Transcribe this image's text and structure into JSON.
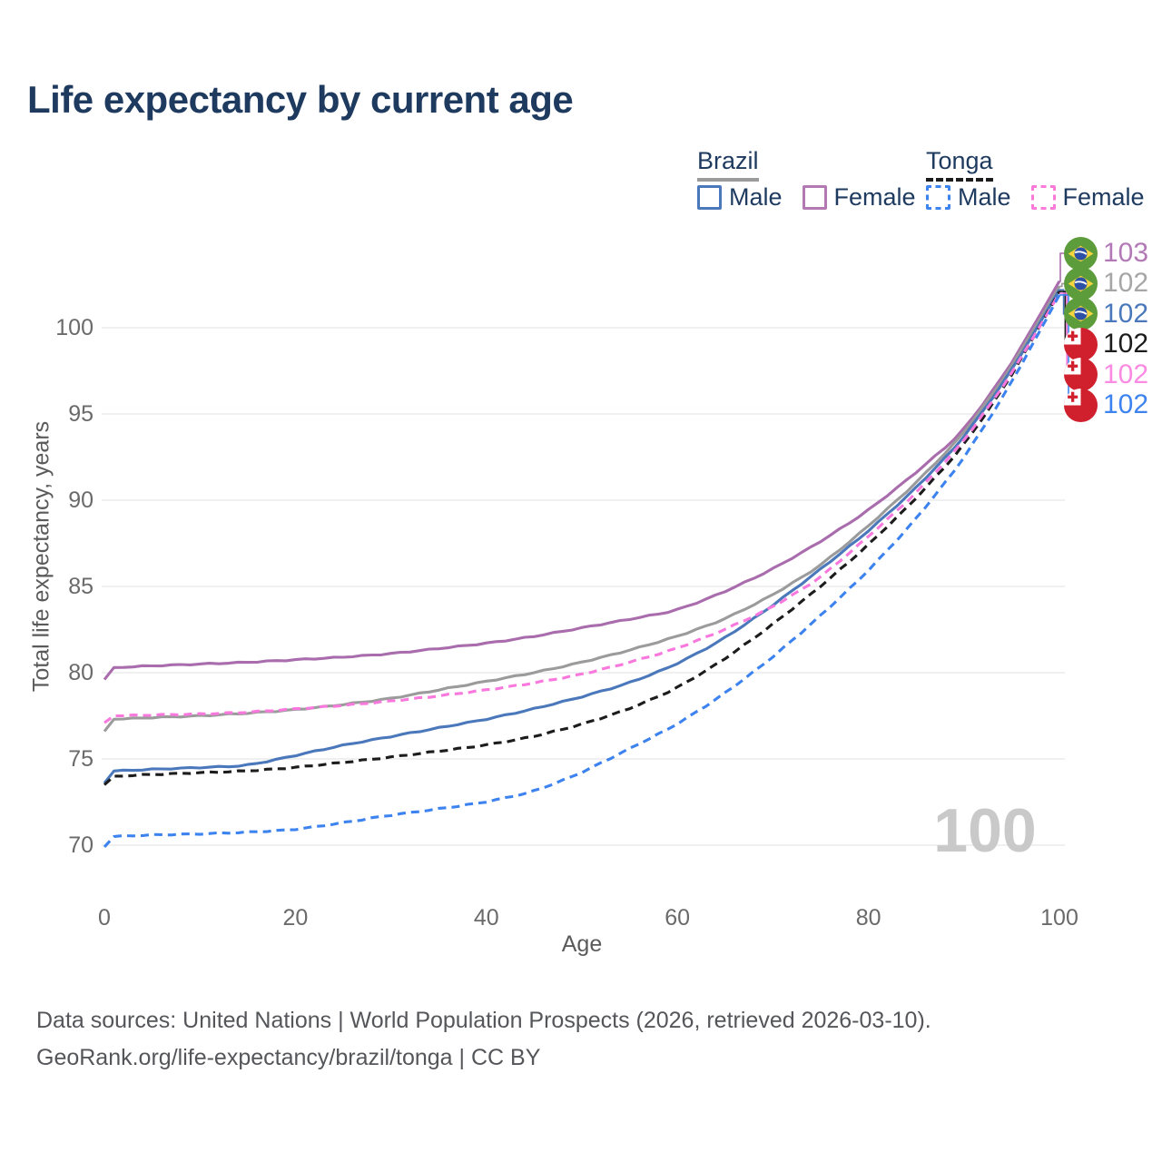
{
  "title": "Life expectancy by current age",
  "legend": {
    "groups": [
      {
        "country": "Brazil",
        "underline_style": "solid",
        "underline_color": "#9b9b9b",
        "items": [
          {
            "label": "Male",
            "color": "#4a78bb",
            "dash": false
          },
          {
            "label": "Female",
            "color": "#b279b2",
            "dash": false
          }
        ]
      },
      {
        "country": "Tonga",
        "underline_style": "dashed",
        "underline_color": "#1c1c1c",
        "items": [
          {
            "label": "Male",
            "color": "#3d83ef",
            "dash": true
          },
          {
            "label": "Female",
            "color": "#fb7ad9",
            "dash": true
          }
        ]
      }
    ]
  },
  "chart_data": {
    "type": "line",
    "xlabel": "Age",
    "ylabel": "Total life expectancy, years",
    "x_ticks": [
      0,
      20,
      40,
      60,
      80,
      100
    ],
    "y_ticks": [
      70,
      75,
      80,
      85,
      90,
      95,
      100
    ],
    "xlim": [
      0,
      100
    ],
    "ylim": [
      68.5,
      104
    ],
    "grid": true,
    "watermark": "100",
    "x": [
      0,
      1,
      5,
      10,
      15,
      20,
      25,
      30,
      35,
      40,
      45,
      50,
      55,
      60,
      65,
      70,
      75,
      80,
      85,
      90,
      95,
      100
    ],
    "series": [
      {
        "name": "Brazil Female",
        "country": "Brazil",
        "sex": "Female",
        "color": "#a96cac",
        "dash": false,
        "end_label": "103",
        "label_color": "#b279b6",
        "flag": "brazil",
        "values": [
          79.6,
          80.3,
          80.4,
          80.5,
          80.6,
          80.75,
          80.9,
          81.1,
          81.4,
          81.7,
          82.1,
          82.6,
          83.1,
          83.6,
          84.7,
          86.0,
          87.6,
          89.4,
          91.6,
          94.0,
          97.9,
          102.7
        ]
      },
      {
        "name": "Brazil Both sexes",
        "country": "Brazil",
        "sex": "Both",
        "color": "#9b9b9b",
        "dash": false,
        "end_label": "102",
        "label_color": "#a6a6a6",
        "flag": "brazil",
        "values": [
          76.6,
          77.3,
          77.4,
          77.5,
          77.65,
          77.85,
          78.15,
          78.5,
          79.0,
          79.5,
          80.0,
          80.6,
          81.3,
          82.1,
          83.1,
          84.5,
          86.2,
          88.5,
          91.0,
          93.85,
          97.7,
          102.4
        ]
      },
      {
        "name": "Brazil Male",
        "country": "Brazil",
        "sex": "Male",
        "color": "#4a78bb",
        "dash": false,
        "end_label": "102",
        "label_color": "#4a78bb",
        "flag": "brazil",
        "values": [
          73.6,
          74.3,
          74.4,
          74.5,
          74.6,
          75.2,
          75.8,
          76.3,
          76.8,
          77.3,
          77.9,
          78.6,
          79.4,
          80.5,
          82.0,
          83.9,
          86.0,
          88.2,
          90.7,
          93.6,
          97.5,
          102.2
        ]
      },
      {
        "name": "Tonga Both sexes",
        "country": "Tonga",
        "sex": "Both",
        "color": "#1c1c1c",
        "dash": true,
        "end_label": "102",
        "label_color": "#1c1c1c",
        "flag": "tonga",
        "values": [
          73.5,
          74.0,
          74.1,
          74.2,
          74.3,
          74.5,
          74.8,
          75.1,
          75.45,
          75.8,
          76.3,
          77.0,
          77.9,
          79.1,
          80.8,
          82.8,
          85.0,
          87.4,
          90.1,
          93.15,
          97.2,
          102.1
        ]
      },
      {
        "name": "Tonga Female",
        "country": "Tonga",
        "sex": "Female",
        "color": "#f878dd",
        "dash": true,
        "end_label": "102",
        "label_color": "#fb8ae2",
        "flag": "tonga",
        "values": [
          77.1,
          77.5,
          77.55,
          77.6,
          77.7,
          77.9,
          78.1,
          78.35,
          78.65,
          79.0,
          79.4,
          79.9,
          80.6,
          81.4,
          82.5,
          83.8,
          85.5,
          87.9,
          90.4,
          93.4,
          97.3,
          102.0
        ]
      },
      {
        "name": "Tonga Male",
        "country": "Tonga",
        "sex": "Male",
        "color": "#3d83ef",
        "dash": true,
        "end_label": "102",
        "label_color": "#3d83ef",
        "flag": "tonga",
        "values": [
          69.9,
          70.5,
          70.6,
          70.65,
          70.75,
          70.9,
          71.3,
          71.75,
          72.1,
          72.5,
          73.1,
          74.2,
          75.6,
          77.0,
          78.8,
          80.9,
          83.3,
          85.9,
          88.9,
          92.4,
          96.8,
          101.9
        ]
      }
    ]
  },
  "footer": {
    "line1": "Data sources: United Nations | World Population Prospects (2026, retrieved 2026-03-10).",
    "line2": "GeoRank.org/life-expectancy/brazil/tonga | CC BY"
  }
}
